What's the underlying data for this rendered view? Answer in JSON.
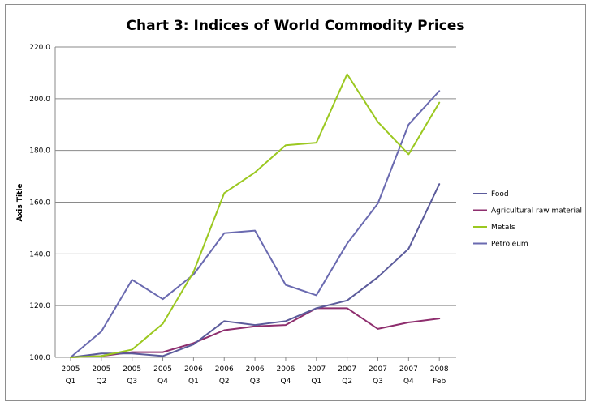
{
  "chart_data": {
    "type": "line",
    "title": "Chart 3: Indices of World Commodity Prices",
    "xlabel": "",
    "ylabel": "Axis Title",
    "ylim": [
      100,
      220
    ],
    "ytick_step": 20,
    "ytick_labels": [
      "100.0",
      "120.0",
      "140.0",
      "160.0",
      "180.0",
      "200.0",
      "220.0"
    ],
    "grid": true,
    "legend_position": "right",
    "categories": [
      [
        "2005",
        "Q1"
      ],
      [
        "2005",
        "Q2"
      ],
      [
        "2005",
        "Q3"
      ],
      [
        "2005",
        "Q4"
      ],
      [
        "2006",
        "Q1"
      ],
      [
        "2006",
        "Q2"
      ],
      [
        "2006",
        "Q3"
      ],
      [
        "2006",
        "Q4"
      ],
      [
        "2007",
        "Q1"
      ],
      [
        "2007",
        "Q2"
      ],
      [
        "2007",
        "Q3"
      ],
      [
        "2007",
        "Q4"
      ],
      [
        "2008",
        "Feb"
      ]
    ],
    "series": [
      {
        "name": "Food",
        "color": "#5b5b9b",
        "values": [
          100,
          101.5,
          101.5,
          100.5,
          105,
          114,
          112.5,
          114,
          119,
          122,
          131,
          142,
          167
        ]
      },
      {
        "name": "Agricultural raw material",
        "color": "#8e2e6e",
        "values": [
          100,
          100.5,
          102,
          102,
          105.5,
          110.5,
          112,
          112.5,
          119,
          119,
          111,
          113.5,
          115
        ]
      },
      {
        "name": "Metals",
        "color": "#9bc820",
        "values": [
          100,
          100.5,
          103,
          113,
          133,
          163.5,
          171.5,
          182,
          183,
          209.5,
          191,
          178.5,
          198.5
        ]
      },
      {
        "name": "Petroleum",
        "color": "#6a6ab0",
        "values": [
          100,
          110,
          130,
          122.5,
          132,
          148,
          149,
          128,
          124,
          144,
          159.5,
          190,
          203
        ]
      }
    ]
  }
}
